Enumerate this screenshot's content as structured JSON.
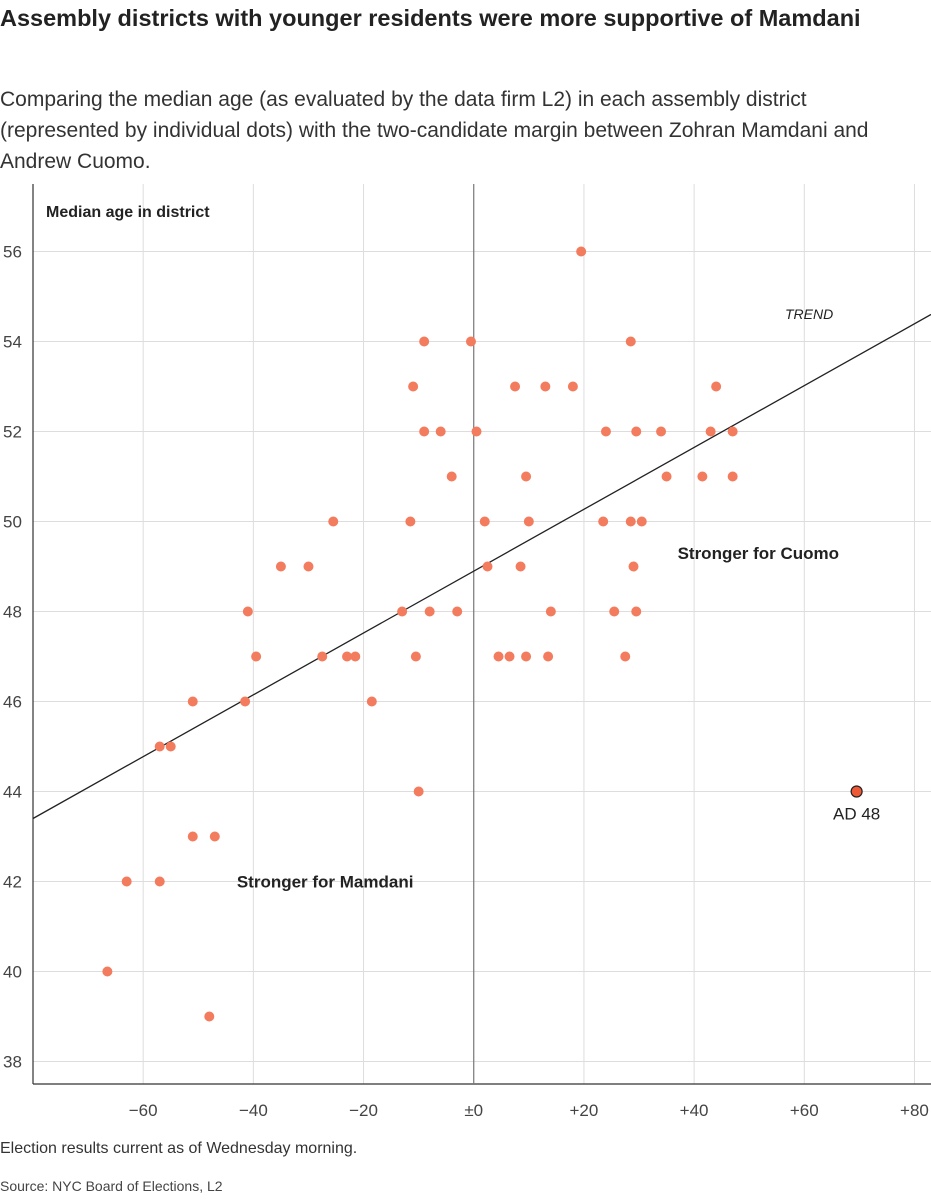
{
  "header": {
    "title": "Assembly districts with younger residents were more supportive of Mamdani",
    "subtitle": "Comparing the median age (as evaluated by the data firm L2) in each assembly district (represented by individual dots) with the two-candidate margin between Zohran Mamdani and Andrew Cuomo."
  },
  "footer": {
    "note": "Election results current as of Wednesday morning.",
    "source": "Source: NYC Board of Elections, L2"
  },
  "colors": {
    "dot": "#f47c5e",
    "highlight_dot": "#ee5a35",
    "grid": "#dddddd",
    "axis": "#333333"
  },
  "chart_data": {
    "type": "scatter",
    "title": "Assembly districts with younger residents were more supportive of Mamdani",
    "xlabel": "",
    "ylabel": "Median age in district",
    "xlim": [
      -80,
      83
    ],
    "ylim": [
      37.5,
      57.5
    ],
    "x_ticks": [
      -60,
      -40,
      -20,
      0,
      20,
      40,
      60,
      80
    ],
    "x_tick_labels": [
      "−60",
      "−40",
      "−20",
      "±0",
      "+20",
      "+40",
      "+60",
      "+80"
    ],
    "y_ticks": [
      38,
      40,
      42,
      44,
      46,
      48,
      50,
      52,
      54,
      56
    ],
    "y_tick_labels": [
      "38",
      "40",
      "42",
      "44",
      "46",
      "48",
      "50",
      "52",
      "54",
      "56"
    ],
    "grid": true,
    "trend": {
      "label": "TREND",
      "x_start": -80,
      "y_start": 43.4,
      "x_end": 83,
      "y_end": 54.6
    },
    "regions": [
      {
        "label": "Stronger for Cuomo",
        "x": 37,
        "y": 49.3
      },
      {
        "label": "Stronger for Mamdani",
        "x": -43,
        "y": 42
      }
    ],
    "annotations": [
      {
        "label": "AD 48",
        "x": 69.5,
        "y": 44
      }
    ],
    "points": [
      [
        -66.5,
        40
      ],
      [
        -63,
        42
      ],
      [
        -57,
        42
      ],
      [
        -48,
        39
      ],
      [
        -47,
        43
      ],
      [
        -51,
        43
      ],
      [
        -57,
        45
      ],
      [
        -55,
        45
      ],
      [
        -51,
        46
      ],
      [
        -41.5,
        46
      ],
      [
        -41,
        48
      ],
      [
        -39.5,
        47
      ],
      [
        -35,
        49
      ],
      [
        -30,
        49
      ],
      [
        -27.5,
        47
      ],
      [
        -25.5,
        50
      ],
      [
        -23,
        47
      ],
      [
        -21.5,
        47
      ],
      [
        -18.5,
        46
      ],
      [
        -13,
        48
      ],
      [
        -11.5,
        50
      ],
      [
        -11,
        53
      ],
      [
        -10.5,
        47
      ],
      [
        -10,
        44
      ],
      [
        -9,
        54
      ],
      [
        -9,
        52
      ],
      [
        -8,
        48
      ],
      [
        -6,
        52
      ],
      [
        -4,
        51
      ],
      [
        -3,
        48
      ],
      [
        -0.5,
        54
      ],
      [
        0.5,
        52
      ],
      [
        2,
        50
      ],
      [
        2.5,
        49
      ],
      [
        4.5,
        47
      ],
      [
        6.5,
        47
      ],
      [
        7.5,
        53
      ],
      [
        8.5,
        49
      ],
      [
        9.5,
        51
      ],
      [
        10,
        50
      ],
      [
        9.5,
        47
      ],
      [
        13,
        53
      ],
      [
        13.5,
        47
      ],
      [
        14,
        48
      ],
      [
        18,
        53
      ],
      [
        19.5,
        56
      ],
      [
        23.5,
        50
      ],
      [
        24,
        52
      ],
      [
        25.5,
        48
      ],
      [
        27.5,
        47
      ],
      [
        28.5,
        54
      ],
      [
        28.5,
        50
      ],
      [
        29,
        49
      ],
      [
        29.5,
        52
      ],
      [
        29.5,
        48
      ],
      [
        30.5,
        50
      ],
      [
        34,
        52
      ],
      [
        35,
        51
      ],
      [
        41.5,
        51
      ],
      [
        43,
        52
      ],
      [
        44,
        53
      ],
      [
        47,
        52
      ],
      [
        47,
        51
      ],
      [
        69.5,
        44
      ]
    ]
  }
}
